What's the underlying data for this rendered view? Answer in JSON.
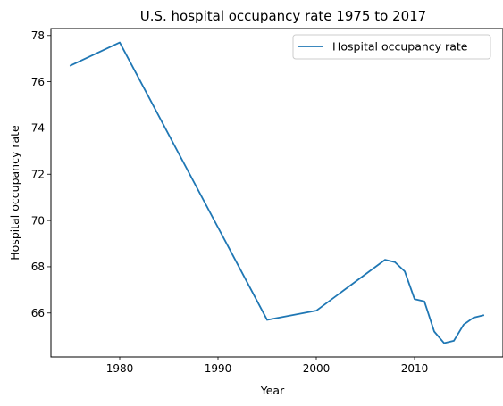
{
  "chart_data": {
    "type": "line",
    "title": "U.S. hospital occupancy rate 1975 to 2017",
    "xlabel": "Year",
    "ylabel": "Hospital occupancy rate",
    "xlim": [
      1973,
      2019
    ],
    "ylim": [
      64.1,
      78.3
    ],
    "xticks": [
      1980,
      1990,
      2000,
      2010
    ],
    "yticks": [
      66,
      68,
      70,
      72,
      74,
      76,
      78
    ],
    "grid": false,
    "legend_position": "top-right",
    "series": [
      {
        "name": "Hospital occupancy rate",
        "color": "#1f77b4",
        "x": [
          1975,
          1980,
          1990,
          1995,
          2000,
          2007,
          2008,
          2009,
          2010,
          2011,
          2012,
          2013,
          2014,
          2015,
          2016,
          2017
        ],
        "y": [
          76.7,
          77.7,
          69.7,
          65.7,
          66.1,
          68.3,
          68.2,
          67.8,
          66.6,
          66.5,
          65.2,
          64.7,
          64.8,
          65.5,
          65.8,
          65.9
        ]
      }
    ]
  }
}
